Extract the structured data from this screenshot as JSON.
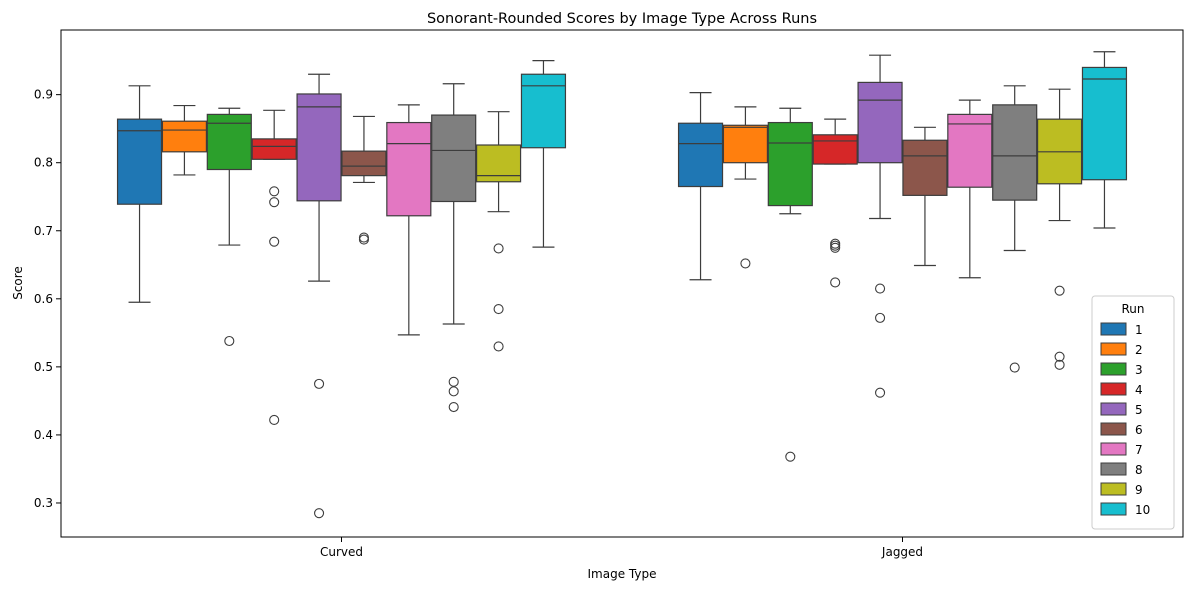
{
  "chart_data": {
    "type": "box",
    "title": "Sonorant-Rounded Scores by Image Type Across Runs",
    "xlabel": "Image Type",
    "ylabel": "Score",
    "ylim": [
      0.25,
      0.995
    ],
    "yticks": [
      "0.3",
      "0.4",
      "0.5",
      "0.6",
      "0.7",
      "0.8",
      "0.9"
    ],
    "categories": [
      "Curved",
      "Jagged"
    ],
    "legend": {
      "title": "Run",
      "position": "bottom-right"
    },
    "series": [
      {
        "name": "1",
        "color": "#1f77b4",
        "boxes": [
          {
            "q1": 0.739,
            "median": 0.847,
            "q3": 0.864,
            "whislo": 0.595,
            "whishi": 0.913,
            "fliers": []
          },
          {
            "q1": 0.765,
            "median": 0.828,
            "q3": 0.858,
            "whislo": 0.628,
            "whishi": 0.903,
            "fliers": []
          }
        ]
      },
      {
        "name": "2",
        "color": "#ff7f0e",
        "boxes": [
          {
            "q1": 0.816,
            "median": 0.848,
            "q3": 0.861,
            "whislo": 0.782,
            "whishi": 0.884,
            "fliers": []
          },
          {
            "q1": 0.8,
            "median": 0.852,
            "q3": 0.855,
            "whislo": 0.776,
            "whishi": 0.882,
            "fliers": [
              0.652
            ]
          }
        ]
      },
      {
        "name": "3",
        "color": "#2ca02c",
        "boxes": [
          {
            "q1": 0.79,
            "median": 0.858,
            "q3": 0.871,
            "whislo": 0.679,
            "whishi": 0.88,
            "fliers": [
              0.538
            ]
          },
          {
            "q1": 0.737,
            "median": 0.829,
            "q3": 0.859,
            "whislo": 0.725,
            "whishi": 0.88,
            "fliers": [
              0.368
            ]
          }
        ]
      },
      {
        "name": "4",
        "color": "#d62728",
        "boxes": [
          {
            "q1": 0.805,
            "median": 0.824,
            "q3": 0.835,
            "whislo": 0.805,
            "whishi": 0.877,
            "fliers": [
              0.758,
              0.742,
              0.684,
              0.422
            ]
          },
          {
            "q1": 0.798,
            "median": 0.832,
            "q3": 0.841,
            "whislo": 0.798,
            "whishi": 0.864,
            "fliers": [
              0.681,
              0.678,
              0.675,
              0.624
            ]
          }
        ]
      },
      {
        "name": "5",
        "color": "#9467bd",
        "boxes": [
          {
            "q1": 0.744,
            "median": 0.882,
            "q3": 0.901,
            "whislo": 0.626,
            "whishi": 0.93,
            "fliers": [
              0.475,
              0.285
            ]
          },
          {
            "q1": 0.8,
            "median": 0.892,
            "q3": 0.918,
            "whislo": 0.718,
            "whishi": 0.958,
            "fliers": [
              0.615,
              0.572,
              0.462
            ]
          }
        ]
      },
      {
        "name": "6",
        "color": "#8c564b",
        "boxes": [
          {
            "q1": 0.781,
            "median": 0.795,
            "q3": 0.817,
            "whislo": 0.771,
            "whishi": 0.868,
            "fliers": [
              0.69,
              0.687
            ]
          },
          {
            "q1": 0.752,
            "median": 0.81,
            "q3": 0.833,
            "whislo": 0.649,
            "whishi": 0.852,
            "fliers": []
          }
        ]
      },
      {
        "name": "7",
        "color": "#e377c2",
        "boxes": [
          {
            "q1": 0.722,
            "median": 0.828,
            "q3": 0.859,
            "whislo": 0.547,
            "whishi": 0.885,
            "fliers": []
          },
          {
            "q1": 0.764,
            "median": 0.857,
            "q3": 0.871,
            "whislo": 0.631,
            "whishi": 0.892,
            "fliers": []
          }
        ]
      },
      {
        "name": "8",
        "color": "#7f7f7f",
        "boxes": [
          {
            "q1": 0.743,
            "median": 0.818,
            "q3": 0.87,
            "whislo": 0.563,
            "whishi": 0.916,
            "fliers": [
              0.478,
              0.464,
              0.441
            ]
          },
          {
            "q1": 0.745,
            "median": 0.81,
            "q3": 0.885,
            "whislo": 0.671,
            "whishi": 0.913,
            "fliers": [
              0.499
            ]
          }
        ]
      },
      {
        "name": "9",
        "color": "#bcbd22",
        "boxes": [
          {
            "q1": 0.772,
            "median": 0.781,
            "q3": 0.826,
            "whislo": 0.728,
            "whishi": 0.875,
            "fliers": [
              0.674,
              0.585,
              0.53
            ]
          },
          {
            "q1": 0.769,
            "median": 0.816,
            "q3": 0.864,
            "whislo": 0.715,
            "whishi": 0.908,
            "fliers": [
              0.612,
              0.515,
              0.503
            ]
          }
        ]
      },
      {
        "name": "10",
        "color": "#17becf",
        "boxes": [
          {
            "q1": 0.822,
            "median": 0.913,
            "q3": 0.93,
            "whislo": 0.676,
            "whishi": 0.95,
            "fliers": []
          },
          {
            "q1": 0.775,
            "median": 0.923,
            "q3": 0.94,
            "whislo": 0.704,
            "whishi": 0.963,
            "fliers": []
          }
        ]
      }
    ]
  }
}
